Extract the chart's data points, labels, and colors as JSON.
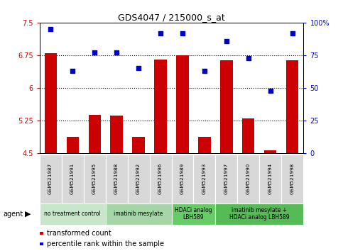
{
  "title": "GDS4047 / 215000_s_at",
  "samples": [
    "GSM521987",
    "GSM521991",
    "GSM521995",
    "GSM521988",
    "GSM521992",
    "GSM521996",
    "GSM521989",
    "GSM521993",
    "GSM521997",
    "GSM521990",
    "GSM521994",
    "GSM521998"
  ],
  "bar_values": [
    6.8,
    4.87,
    5.38,
    5.36,
    4.87,
    6.65,
    6.75,
    4.87,
    6.63,
    5.3,
    4.56,
    6.63
  ],
  "scatter_values": [
    95,
    63,
    77,
    77,
    65,
    92,
    92,
    63,
    86,
    73,
    48,
    92
  ],
  "ylim_left": [
    4.5,
    7.5
  ],
  "ylim_right": [
    0,
    100
  ],
  "yticks_left": [
    4.5,
    5.25,
    6.0,
    6.75,
    7.5
  ],
  "yticks_right": [
    0,
    25,
    50,
    75,
    100
  ],
  "ytick_labels_left": [
    "4.5",
    "5.25",
    "6",
    "6.75",
    "7.5"
  ],
  "ytick_labels_right": [
    "0",
    "25",
    "50",
    "75",
    "100%"
  ],
  "hlines": [
    5.25,
    6.0,
    6.75
  ],
  "bar_color": "#cc0000",
  "scatter_color": "#0000cc",
  "plot_bg": "#ffffff",
  "sample_cell_color": "#d8d8d8",
  "agent_groups": [
    {
      "label": "no treatment control",
      "start": 0,
      "end": 3,
      "color": "#c8e6c9"
    },
    {
      "label": "imatinib mesylate",
      "start": 3,
      "end": 6,
      "color": "#a5d6a7"
    },
    {
      "label": "HDACi analog\nLBH589",
      "start": 6,
      "end": 8,
      "color": "#66cc66"
    },
    {
      "label": "imatinib mesylate +\nHDACi analog LBH589",
      "start": 8,
      "end": 12,
      "color": "#55bb55"
    }
  ],
  "legend_items": [
    {
      "label": "transformed count",
      "color": "#cc0000"
    },
    {
      "label": "percentile rank within the sample",
      "color": "#0000cc"
    }
  ],
  "bar_width": 0.55
}
